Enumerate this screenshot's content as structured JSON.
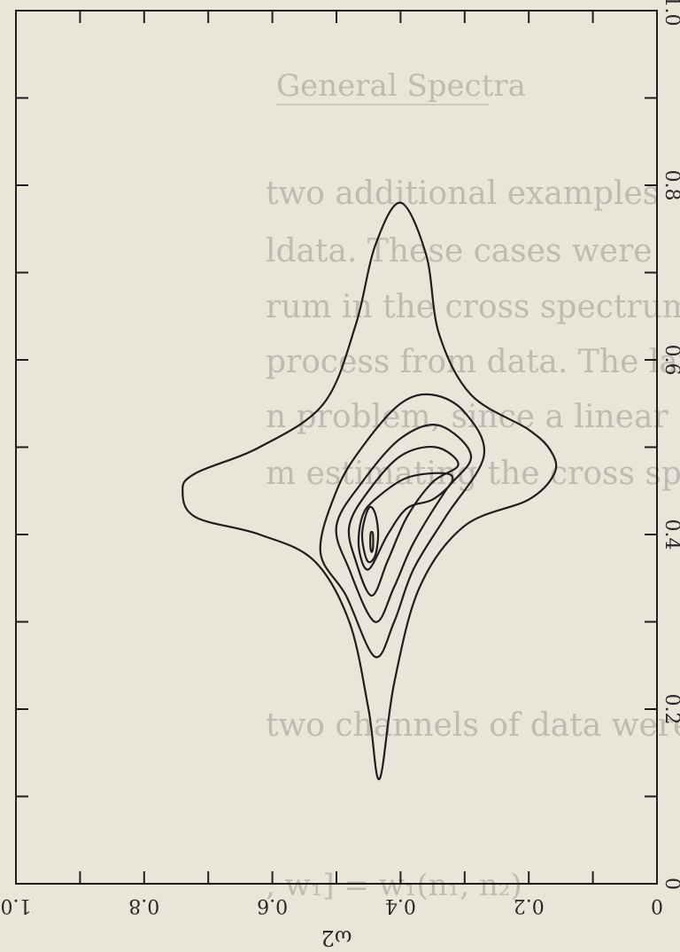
{
  "chart_data": {
    "type": "contour",
    "title": "",
    "x_axis": {
      "label": "ω2",
      "range": [
        0,
        1.0
      ],
      "ticks": [
        {
          "value": 0,
          "label": "0"
        },
        {
          "value": 0.2,
          "label": "0.2"
        },
        {
          "value": 0.4,
          "label": "0.4"
        },
        {
          "value": 0.6,
          "label": "0.6"
        },
        {
          "value": 0.8,
          "label": "0.8"
        },
        {
          "value": 1.0,
          "label": "1.0"
        }
      ]
    },
    "y_axis": {
      "label": "",
      "range": [
        0,
        1.0
      ],
      "ticks": [
        {
          "value": 0,
          "label": "0"
        },
        {
          "value": 0.2,
          "label": "0.2"
        },
        {
          "value": 0.4,
          "label": "0.4"
        },
        {
          "value": 0.6,
          "label": "0.6"
        },
        {
          "value": 0.8,
          "label": "0.8"
        },
        {
          "value": 1.0,
          "label": "1.0"
        }
      ]
    },
    "orientation": "rotated 90° (page printed sideways)",
    "grid": false,
    "contours": [
      {
        "level": 1,
        "points": [
          [
            0.433,
            0.12
          ],
          [
            0.45,
            0.2
          ],
          [
            0.48,
            0.3
          ],
          [
            0.535,
            0.37
          ],
          [
            0.62,
            0.4
          ],
          [
            0.72,
            0.42
          ],
          [
            0.74,
            0.45
          ],
          [
            0.72,
            0.47
          ],
          [
            0.62,
            0.5
          ],
          [
            0.52,
            0.55
          ],
          [
            0.47,
            0.64
          ],
          [
            0.44,
            0.73
          ],
          [
            0.4,
            0.78
          ],
          [
            0.36,
            0.72
          ],
          [
            0.34,
            0.63
          ],
          [
            0.29,
            0.56
          ],
          [
            0.2,
            0.52
          ],
          [
            0.165,
            0.495
          ],
          [
            0.16,
            0.47
          ],
          [
            0.2,
            0.44
          ],
          [
            0.3,
            0.41
          ],
          [
            0.37,
            0.34
          ],
          [
            0.41,
            0.23
          ]
        ]
      },
      {
        "level": 2,
        "points": [
          [
            0.44,
            0.26
          ],
          [
            0.485,
            0.33
          ],
          [
            0.525,
            0.38
          ],
          [
            0.5,
            0.45
          ],
          [
            0.46,
            0.5
          ],
          [
            0.4,
            0.55
          ],
          [
            0.35,
            0.56
          ],
          [
            0.3,
            0.54
          ],
          [
            0.27,
            0.49
          ],
          [
            0.33,
            0.42
          ],
          [
            0.38,
            0.36
          ],
          [
            0.41,
            0.3
          ]
        ]
      },
      {
        "level": 3,
        "points": [
          [
            0.44,
            0.3
          ],
          [
            0.48,
            0.36
          ],
          [
            0.5,
            0.41
          ],
          [
            0.46,
            0.46
          ],
          [
            0.4,
            0.51
          ],
          [
            0.34,
            0.525
          ],
          [
            0.29,
            0.49
          ],
          [
            0.33,
            0.45
          ],
          [
            0.38,
            0.39
          ],
          [
            0.41,
            0.34
          ]
        ]
      },
      {
        "level": 4,
        "points": [
          [
            0.445,
            0.33
          ],
          [
            0.47,
            0.37
          ],
          [
            0.48,
            0.41
          ],
          [
            0.45,
            0.45
          ],
          [
            0.4,
            0.49
          ],
          [
            0.345,
            0.5
          ],
          [
            0.31,
            0.48
          ],
          [
            0.35,
            0.46
          ],
          [
            0.39,
            0.42
          ],
          [
            0.42,
            0.37
          ]
        ]
      },
      {
        "level": 5,
        "points": [
          [
            0.45,
            0.36
          ],
          [
            0.465,
            0.385
          ],
          [
            0.46,
            0.42
          ],
          [
            0.44,
            0.44
          ],
          [
            0.39,
            0.465
          ],
          [
            0.33,
            0.47
          ],
          [
            0.32,
            0.46
          ],
          [
            0.35,
            0.44
          ],
          [
            0.39,
            0.43
          ],
          [
            0.42,
            0.4
          ]
        ]
      },
      {
        "level": 6,
        "points": [
          [
            0.452,
            0.37
          ],
          [
            0.46,
            0.4
          ],
          [
            0.45,
            0.43
          ],
          [
            0.44,
            0.425
          ],
          [
            0.435,
            0.4
          ],
          [
            0.44,
            0.375
          ]
        ]
      },
      {
        "level": 7,
        "points": [
          [
            0.445,
            0.38
          ],
          [
            0.447,
            0.385
          ],
          [
            0.447,
            0.4
          ],
          [
            0.445,
            0.403
          ],
          [
            0.443,
            0.4
          ],
          [
            0.443,
            0.385
          ]
        ]
      }
    ],
    "colors": {
      "line": "#1e1e1e",
      "background": "#e9e5d8"
    }
  }
}
